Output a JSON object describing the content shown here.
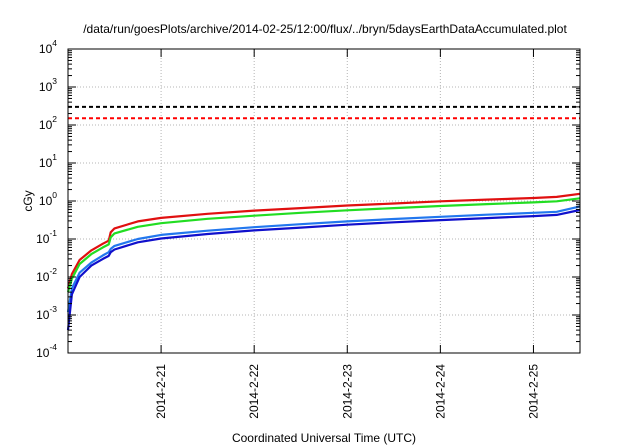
{
  "chart_data": {
    "type": "line",
    "title": "/data/run/goesPlots/archive/2014-02-25/12:00/flux/../bryn/5daysEarthDataAccumulated.plot",
    "xlabel": "Coordinated Universal Time (UTC)",
    "ylabel": "cGy",
    "y_scale": "log",
    "ylim": [
      0.0001,
      10000
    ],
    "xlim": [
      "2014-02-20T00:00",
      "2014-02-25T12:00"
    ],
    "grid": true,
    "y_ticks": [
      {
        "base": "10",
        "exp": "-4",
        "value": 0.0001
      },
      {
        "base": "10",
        "exp": "-3",
        "value": 0.001
      },
      {
        "base": "10",
        "exp": "-2",
        "value": 0.01
      },
      {
        "base": "10",
        "exp": "-1",
        "value": 0.1
      },
      {
        "base": "10",
        "exp": "0",
        "value": 1
      },
      {
        "base": "10",
        "exp": "1",
        "value": 10
      },
      {
        "base": "10",
        "exp": "2",
        "value": 100
      },
      {
        "base": "10",
        "exp": "3",
        "value": 1000
      },
      {
        "base": "10",
        "exp": "4",
        "value": 10000
      }
    ],
    "x_ticks": [
      {
        "label": "2014-2-21",
        "value": "2014-02-21T00:00"
      },
      {
        "label": "2014-2-22",
        "value": "2014-02-22T00:00"
      },
      {
        "label": "2014-2-23",
        "value": "2014-02-23T00:00"
      },
      {
        "label": "2014-2-24",
        "value": "2014-02-24T00:00"
      },
      {
        "label": "2014-2-25",
        "value": "2014-02-25T00:00"
      }
    ],
    "thresholds": [
      {
        "value": 300,
        "color": "#000000",
        "style": "dashed"
      },
      {
        "value": 150,
        "color": "#ff0000",
        "style": "dashed"
      }
    ],
    "series": [
      {
        "color": "#e01010",
        "points": [
          [
            "2014-02-20T00:00",
            0.005
          ],
          [
            "2014-02-20T01:00",
            0.012
          ],
          [
            "2014-02-20T03:00",
            0.028
          ],
          [
            "2014-02-20T06:00",
            0.05
          ],
          [
            "2014-02-20T09:00",
            0.075
          ],
          [
            "2014-02-20T10:30",
            0.09
          ],
          [
            "2014-02-20T11:00",
            0.15
          ],
          [
            "2014-02-20T12:00",
            0.19
          ],
          [
            "2014-02-20T18:00",
            0.29
          ],
          [
            "2014-02-21T00:00",
            0.36
          ],
          [
            "2014-02-21T12:00",
            0.46
          ],
          [
            "2014-02-22T00:00",
            0.56
          ],
          [
            "2014-02-22T12:00",
            0.65
          ],
          [
            "2014-02-23T00:00",
            0.76
          ],
          [
            "2014-02-23T12:00",
            0.86
          ],
          [
            "2014-02-24T00:00",
            0.98
          ],
          [
            "2014-02-24T12:00",
            1.09
          ],
          [
            "2014-02-25T00:00",
            1.2
          ],
          [
            "2014-02-25T06:00",
            1.28
          ],
          [
            "2014-02-25T12:00",
            1.55
          ]
        ]
      },
      {
        "color": "#22dd22",
        "points": [
          [
            "2014-02-20T00:00",
            0.004
          ],
          [
            "2014-02-20T01:00",
            0.009
          ],
          [
            "2014-02-20T03:00",
            0.022
          ],
          [
            "2014-02-20T06:00",
            0.04
          ],
          [
            "2014-02-20T09:00",
            0.06
          ],
          [
            "2014-02-20T10:30",
            0.072
          ],
          [
            "2014-02-20T11:00",
            0.11
          ],
          [
            "2014-02-20T12:00",
            0.14
          ],
          [
            "2014-02-20T18:00",
            0.21
          ],
          [
            "2014-02-21T00:00",
            0.26
          ],
          [
            "2014-02-21T12:00",
            0.34
          ],
          [
            "2014-02-22T00:00",
            0.41
          ],
          [
            "2014-02-22T12:00",
            0.49
          ],
          [
            "2014-02-23T00:00",
            0.57
          ],
          [
            "2014-02-23T12:00",
            0.65
          ],
          [
            "2014-02-24T00:00",
            0.74
          ],
          [
            "2014-02-24T12:00",
            0.83
          ],
          [
            "2014-02-25T00:00",
            0.92
          ],
          [
            "2014-02-25T06:00",
            0.98
          ],
          [
            "2014-02-25T12:00",
            1.18
          ]
        ]
      },
      {
        "color": "#2277ee",
        "points": [
          [
            "2014-02-20T00:00",
            0.0012
          ],
          [
            "2014-02-20T01:00",
            0.005
          ],
          [
            "2014-02-20T03:00",
            0.013
          ],
          [
            "2014-02-20T06:00",
            0.024
          ],
          [
            "2014-02-20T09:00",
            0.037
          ],
          [
            "2014-02-20T10:30",
            0.045
          ],
          [
            "2014-02-20T11:00",
            0.055
          ],
          [
            "2014-02-20T12:00",
            0.066
          ],
          [
            "2014-02-20T18:00",
            0.1
          ],
          [
            "2014-02-21T00:00",
            0.128
          ],
          [
            "2014-02-21T12:00",
            0.165
          ],
          [
            "2014-02-22T00:00",
            0.205
          ],
          [
            "2014-02-22T12:00",
            0.245
          ],
          [
            "2014-02-23T00:00",
            0.29
          ],
          [
            "2014-02-23T12:00",
            0.335
          ],
          [
            "2014-02-24T00:00",
            0.385
          ],
          [
            "2014-02-24T12:00",
            0.435
          ],
          [
            "2014-02-25T00:00",
            0.49
          ],
          [
            "2014-02-25T06:00",
            0.52
          ],
          [
            "2014-02-25T12:00",
            0.72
          ]
        ]
      },
      {
        "color": "#1010cc",
        "points": [
          [
            "2014-02-20T00:00",
            0.0004
          ],
          [
            "2014-02-20T01:00",
            0.0035
          ],
          [
            "2014-02-20T03:00",
            0.01
          ],
          [
            "2014-02-20T06:00",
            0.02
          ],
          [
            "2014-02-20T09:00",
            0.03
          ],
          [
            "2014-02-20T10:30",
            0.036
          ],
          [
            "2014-02-20T11:00",
            0.045
          ],
          [
            "2014-02-20T12:00",
            0.053
          ],
          [
            "2014-02-20T18:00",
            0.082
          ],
          [
            "2014-02-21T00:00",
            0.103
          ],
          [
            "2014-02-21T12:00",
            0.135
          ],
          [
            "2014-02-22T00:00",
            0.168
          ],
          [
            "2014-02-22T12:00",
            0.2
          ],
          [
            "2014-02-23T00:00",
            0.238
          ],
          [
            "2014-02-23T12:00",
            0.275
          ],
          [
            "2014-02-24T00:00",
            0.315
          ],
          [
            "2014-02-24T12:00",
            0.355
          ],
          [
            "2014-02-25T00:00",
            0.4
          ],
          [
            "2014-02-25T06:00",
            0.43
          ],
          [
            "2014-02-25T12:00",
            0.58
          ]
        ]
      }
    ]
  }
}
